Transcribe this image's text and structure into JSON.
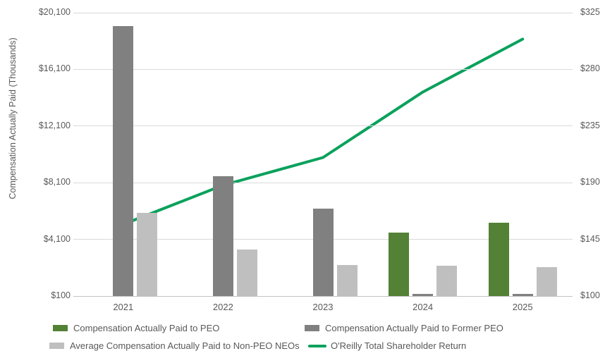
{
  "chart_data": {
    "type": "combo-bar-line",
    "categories": [
      "2021",
      "2022",
      "2023",
      "2024",
      "2025"
    ],
    "bar_series": [
      {
        "name": "Compensation Actually Paid to PEO",
        "color": "#538135",
        "values": [
          null,
          null,
          null,
          4600,
          5250
        ]
      },
      {
        "name": "Compensation Actually Paid to Former PEO",
        "color": "#808080",
        "values": [
          19150,
          8550,
          6250,
          250,
          250
        ]
      },
      {
        "name": "Average Compensation Actually Paid to Non-PEO NEOs",
        "color": "#bfbfbf",
        "values": [
          5950,
          3400,
          2300,
          2250,
          2150
        ]
      }
    ],
    "line_series": {
      "name": "O'Reilly Total Shareholder Return",
      "color": "#0aa15c",
      "axis": "right",
      "values": [
        157,
        188,
        210,
        262,
        304
      ]
    },
    "left_axis": {
      "title": "Compensation Actually Paid (Thousands)",
      "tick_labels": [
        "$100",
        "$4,100",
        "$8,100",
        "$12,100",
        "$16,100",
        "$20,100"
      ],
      "tick_values": [
        100,
        4100,
        8100,
        12100,
        16100,
        20100
      ],
      "min": 100,
      "max": 20100
    },
    "right_axis": {
      "tick_labels": [
        "$100",
        "$145",
        "$190",
        "$235",
        "$280",
        "$325"
      ],
      "tick_values": [
        100,
        145,
        190,
        235,
        280,
        325
      ],
      "min": 100,
      "max": 325
    },
    "grid": true,
    "legend_position": "bottom"
  },
  "legend": {
    "items": [
      {
        "label": "Compensation Actually Paid to PEO",
        "swatch": "bar",
        "color": "#538135"
      },
      {
        "label": "Compensation Actually Paid to Former PEO",
        "swatch": "bar",
        "color": "#808080"
      },
      {
        "label": "Average Compensation Actually Paid to Non-PEO NEOs",
        "swatch": "bar",
        "color": "#bfbfbf"
      },
      {
        "label": "O'Reilly Total Shareholder Return",
        "swatch": "line",
        "color": "#0aa15c"
      }
    ]
  }
}
